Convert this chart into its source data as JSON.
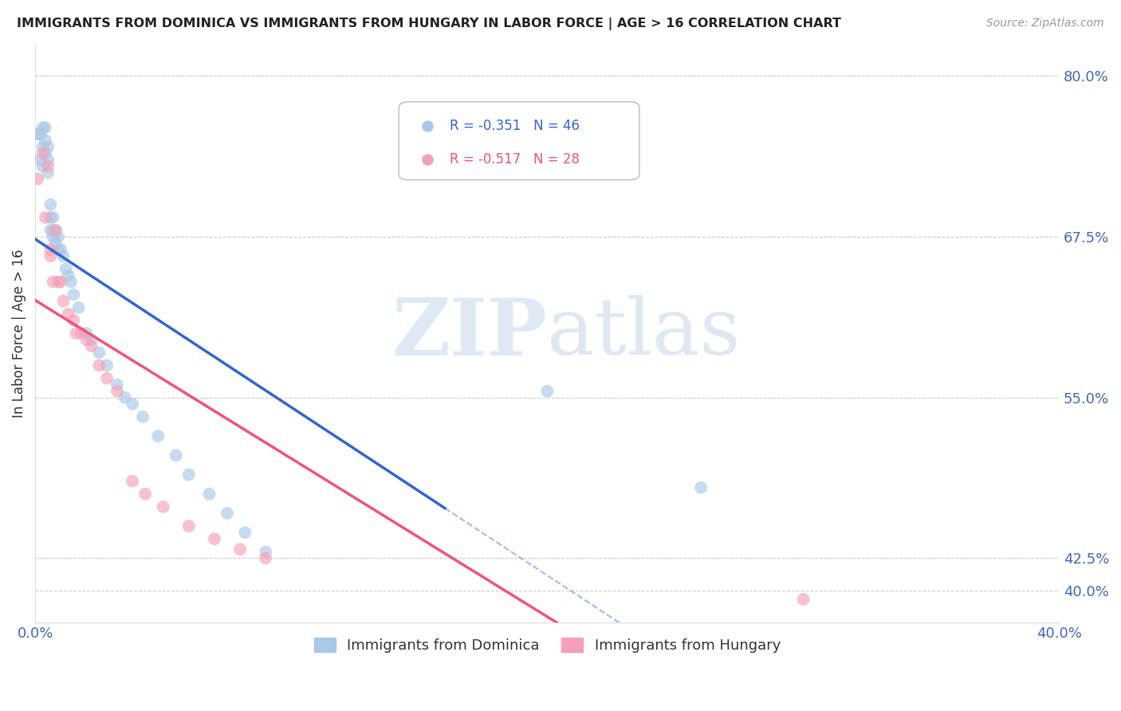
{
  "title": "IMMIGRANTS FROM DOMINICA VS IMMIGRANTS FROM HUNGARY IN LABOR FORCE | AGE > 16 CORRELATION CHART",
  "source": "Source: ZipAtlas.com",
  "ylabel": "In Labor Force | Age > 16",
  "xlim": [
    0.0,
    0.4
  ],
  "ylim": [
    0.375,
    0.825
  ],
  "ytick_vals": [
    0.4,
    0.425,
    0.55,
    0.675,
    0.8
  ],
  "ytick_labels": [
    "40.0%",
    "42.5%",
    "55.0%",
    "67.5%",
    "80.0%"
  ],
  "dominica_color": "#aac8e8",
  "hungary_color": "#f5a0b8",
  "dominica_label": "Immigrants from Dominica",
  "hungary_label": "Immigrants from Hungary",
  "dominica_R": "-0.351",
  "dominica_N": "46",
  "hungary_R": "-0.517",
  "hungary_N": "28",
  "dominica_x": [
    0.001,
    0.002,
    0.002,
    0.003,
    0.003,
    0.003,
    0.004,
    0.004,
    0.004,
    0.005,
    0.005,
    0.005,
    0.006,
    0.006,
    0.006,
    0.007,
    0.007,
    0.007,
    0.008,
    0.008,
    0.009,
    0.009,
    0.01,
    0.011,
    0.012,
    0.013,
    0.014,
    0.015,
    0.017,
    0.02,
    0.022,
    0.025,
    0.028,
    0.032,
    0.035,
    0.038,
    0.042,
    0.048,
    0.055,
    0.06,
    0.068,
    0.075,
    0.082,
    0.09,
    0.2,
    0.26
  ],
  "dominica_y": [
    0.755,
    0.755,
    0.735,
    0.76,
    0.745,
    0.73,
    0.76,
    0.75,
    0.74,
    0.745,
    0.735,
    0.725,
    0.7,
    0.69,
    0.68,
    0.69,
    0.68,
    0.675,
    0.68,
    0.67,
    0.675,
    0.665,
    0.665,
    0.66,
    0.65,
    0.645,
    0.64,
    0.63,
    0.62,
    0.6,
    0.595,
    0.585,
    0.575,
    0.56,
    0.55,
    0.545,
    0.535,
    0.52,
    0.505,
    0.49,
    0.475,
    0.46,
    0.445,
    0.43,
    0.555,
    0.48
  ],
  "hungary_x": [
    0.001,
    0.003,
    0.004,
    0.005,
    0.006,
    0.006,
    0.007,
    0.008,
    0.009,
    0.01,
    0.011,
    0.013,
    0.015,
    0.016,
    0.018,
    0.02,
    0.022,
    0.025,
    0.028,
    0.032,
    0.038,
    0.043,
    0.05,
    0.06,
    0.07,
    0.08,
    0.09,
    0.3
  ],
  "hungary_y": [
    0.72,
    0.74,
    0.69,
    0.73,
    0.665,
    0.66,
    0.64,
    0.68,
    0.64,
    0.64,
    0.625,
    0.615,
    0.61,
    0.6,
    0.6,
    0.595,
    0.59,
    0.575,
    0.565,
    0.555,
    0.485,
    0.475,
    0.465,
    0.45,
    0.44,
    0.432,
    0.425,
    0.393
  ],
  "watermark_zip": "ZIP",
  "watermark_atlas": "atlas",
  "title_color": "#222222",
  "tick_color": "#4466bb",
  "grid_color": "#cccccc",
  "regression_blue_color": "#3366cc",
  "regression_pink_color": "#ee5577",
  "regression_blue_solid_xmax": 0.16,
  "regression_blue_dashed_xmin": 0.16,
  "regression_blue_dashed_xmax": 0.4
}
